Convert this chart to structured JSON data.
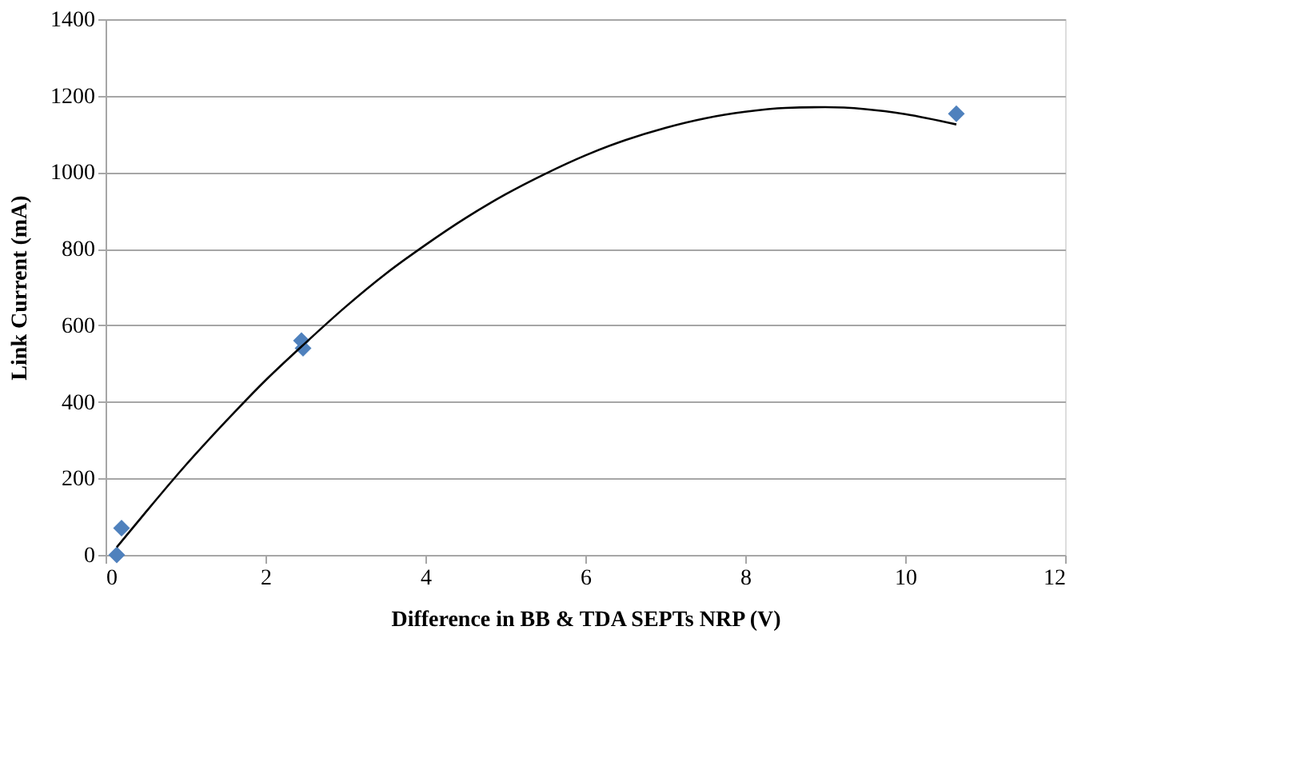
{
  "chart_data": {
    "type": "scatter",
    "xlabel": "Difference in BB & TDA SEPTs NRP (V)",
    "ylabel": "Link Current (mA)",
    "xlim": [
      0,
      12
    ],
    "xticks": [
      0,
      2,
      4,
      6,
      8,
      10,
      12
    ],
    "ylim": [
      0,
      1400
    ],
    "yticks": [
      0,
      200,
      400,
      600,
      800,
      1000,
      1200,
      1400
    ],
    "grid": "y",
    "marker": "diamond",
    "series": [
      {
        "color": "#4f81bd",
        "x": [
          0.14,
          0.2,
          2.45,
          2.47,
          10.64
        ],
        "values": [
          0,
          70,
          560,
          540,
          1153
        ]
      },
      {
        "type": "line",
        "color": "#000000",
        "marker": "none",
        "x": [
          0.14,
          0.5,
          1,
          1.5,
          2,
          2.5,
          3,
          3.5,
          4,
          4.5,
          5,
          5.5,
          6,
          6.5,
          7,
          7.5,
          8,
          8.5,
          9,
          9.5,
          10,
          10.64
        ],
        "values": [
          20,
          111,
          234,
          348,
          456,
          554,
          648,
          734,
          810,
          880,
          942,
          996,
          1044,
          1084,
          1116,
          1141,
          1158,
          1168,
          1170,
          1165,
          1152,
          1125
        ]
      }
    ]
  }
}
